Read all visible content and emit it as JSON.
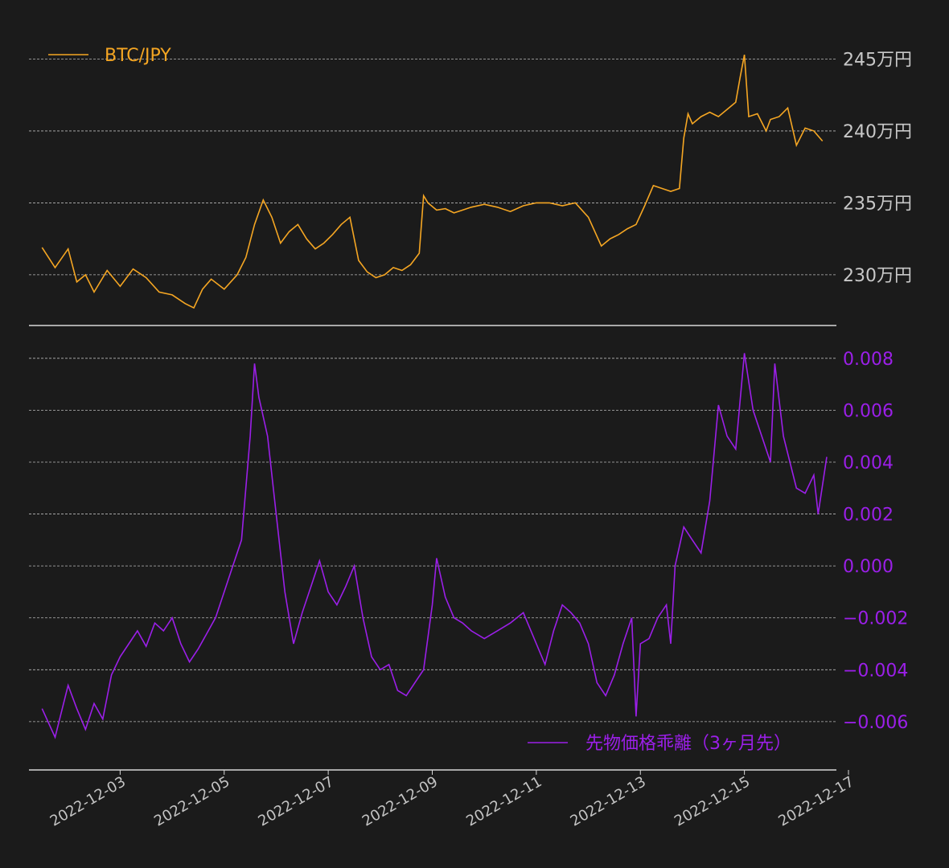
{
  "chart_data": [
    {
      "type": "line",
      "series": [
        {
          "name": "BTC/JPY",
          "color": "#f5a623",
          "points": [
            [
              "2022-12-01 12:00",
              2319000
            ],
            [
              "2022-12-01 18:00",
              2305000
            ],
            [
              "2022-12-02 00:00",
              2318000
            ],
            [
              "2022-12-02 04:00",
              2295000
            ],
            [
              "2022-12-02 08:00",
              2300000
            ],
            [
              "2022-12-02 12:00",
              2288000
            ],
            [
              "2022-12-02 18:00",
              2303000
            ],
            [
              "2022-12-03 00:00",
              2292000
            ],
            [
              "2022-12-03 06:00",
              2304000
            ],
            [
              "2022-12-03 12:00",
              2298000
            ],
            [
              "2022-12-03 18:00",
              2288000
            ],
            [
              "2022-12-04 00:00",
              2286000
            ],
            [
              "2022-12-04 06:00",
              2280000
            ],
            [
              "2022-12-04 10:00",
              2277000
            ],
            [
              "2022-12-04 14:00",
              2290000
            ],
            [
              "2022-12-04 18:00",
              2297000
            ],
            [
              "2022-12-05 00:00",
              2290000
            ],
            [
              "2022-12-05 06:00",
              2300000
            ],
            [
              "2022-12-05 10:00",
              2312000
            ],
            [
              "2022-12-05 14:00",
              2335000
            ],
            [
              "2022-12-05 18:00",
              2352000
            ],
            [
              "2022-12-05 22:00",
              2340000
            ],
            [
              "2022-12-06 02:00",
              2322000
            ],
            [
              "2022-12-06 06:00",
              2330000
            ],
            [
              "2022-12-06 10:00",
              2335000
            ],
            [
              "2022-12-06 14:00",
              2325000
            ],
            [
              "2022-12-06 18:00",
              2318000
            ],
            [
              "2022-12-06 22:00",
              2322000
            ],
            [
              "2022-12-07 02:00",
              2328000
            ],
            [
              "2022-12-07 06:00",
              2335000
            ],
            [
              "2022-12-07 10:00",
              2340000
            ],
            [
              "2022-12-07 14:00",
              2310000
            ],
            [
              "2022-12-07 18:00",
              2302000
            ],
            [
              "2022-12-07 22:00",
              2298000
            ],
            [
              "2022-12-08 02:00",
              2300000
            ],
            [
              "2022-12-08 06:00",
              2305000
            ],
            [
              "2022-12-08 10:00",
              2303000
            ],
            [
              "2022-12-08 14:00",
              2307000
            ],
            [
              "2022-12-08 18:00",
              2315000
            ],
            [
              "2022-12-08 20:00",
              2355000
            ],
            [
              "2022-12-08 22:00",
              2350000
            ],
            [
              "2022-12-09 02:00",
              2345000
            ],
            [
              "2022-12-09 06:00",
              2346000
            ],
            [
              "2022-12-09 10:00",
              2343000
            ],
            [
              "2022-12-09 14:00",
              2345000
            ],
            [
              "2022-12-09 18:00",
              2347000
            ],
            [
              "2022-12-10 00:00",
              2349000
            ],
            [
              "2022-12-10 06:00",
              2347000
            ],
            [
              "2022-12-10 12:00",
              2344000
            ],
            [
              "2022-12-10 18:00",
              2348000
            ],
            [
              "2022-12-11 00:00",
              2350000
            ],
            [
              "2022-12-11 06:00",
              2350000
            ],
            [
              "2022-12-11 12:00",
              2348000
            ],
            [
              "2022-12-11 18:00",
              2350000
            ],
            [
              "2022-12-12 00:00",
              2340000
            ],
            [
              "2022-12-12 06:00",
              2320000
            ],
            [
              "2022-12-12 10:00",
              2325000
            ],
            [
              "2022-12-12 14:00",
              2328000
            ],
            [
              "2022-12-12 18:00",
              2332000
            ],
            [
              "2022-12-12 22:00",
              2335000
            ],
            [
              "2022-12-13 02:00",
              2348000
            ],
            [
              "2022-12-13 06:00",
              2362000
            ],
            [
              "2022-12-13 10:00",
              2360000
            ],
            [
              "2022-12-13 14:00",
              2358000
            ],
            [
              "2022-12-13 18:00",
              2360000
            ],
            [
              "2022-12-13 20:00",
              2395000
            ],
            [
              "2022-12-13 22:00",
              2412000
            ],
            [
              "2022-12-14 00:00",
              2405000
            ],
            [
              "2022-12-14 04:00",
              2410000
            ],
            [
              "2022-12-14 08:00",
              2413000
            ],
            [
              "2022-12-14 12:00",
              2410000
            ],
            [
              "2022-12-14 16:00",
              2415000
            ],
            [
              "2022-12-14 20:00",
              2420000
            ],
            [
              "2022-12-14 22:00",
              2437000
            ],
            [
              "2022-12-15 00:00",
              2453000
            ],
            [
              "2022-12-15 02:00",
              2410000
            ],
            [
              "2022-12-15 06:00",
              2412000
            ],
            [
              "2022-12-15 10:00",
              2400000
            ],
            [
              "2022-12-15 12:00",
              2408000
            ],
            [
              "2022-12-15 16:00",
              2410000
            ],
            [
              "2022-12-15 20:00",
              2416000
            ],
            [
              "2022-12-16 00:00",
              2390000
            ],
            [
              "2022-12-16 04:00",
              2402000
            ],
            [
              "2022-12-16 08:00",
              2400000
            ],
            [
              "2022-12-16 12:00",
              2393000
            ]
          ]
        }
      ],
      "y_ticks": [
        {
          "value": 2300000,
          "label": "230万円"
        },
        {
          "value": 2350000,
          "label": "235万円"
        },
        {
          "value": 2400000,
          "label": "240万円"
        },
        {
          "value": 2450000,
          "label": "245万円"
        }
      ],
      "ylim": [
        2272000,
        2462000
      ],
      "grid": true,
      "legend": "top-left"
    },
    {
      "type": "line",
      "series": [
        {
          "name": "先物価格乖離（3ヶ月先）",
          "color": "#9b1fe8",
          "points": [
            [
              "2022-12-01 12:00",
              -0.0055
            ],
            [
              "2022-12-01 18:00",
              -0.0066
            ],
            [
              "2022-12-02 00:00",
              -0.0046
            ],
            [
              "2022-12-02 04:00",
              -0.0055
            ],
            [
              "2022-12-02 08:00",
              -0.0063
            ],
            [
              "2022-12-02 12:00",
              -0.0053
            ],
            [
              "2022-12-02 16:00",
              -0.0059
            ],
            [
              "2022-12-02 20:00",
              -0.0042
            ],
            [
              "2022-12-03 00:00",
              -0.0035
            ],
            [
              "2022-12-03 04:00",
              -0.003
            ],
            [
              "2022-12-03 08:00",
              -0.0025
            ],
            [
              "2022-12-03 12:00",
              -0.0031
            ],
            [
              "2022-12-03 16:00",
              -0.0022
            ],
            [
              "2022-12-03 20:00",
              -0.0025
            ],
            [
              "2022-12-04 00:00",
              -0.002
            ],
            [
              "2022-12-04 04:00",
              -0.003
            ],
            [
              "2022-12-04 08:00",
              -0.0037
            ],
            [
              "2022-12-04 12:00",
              -0.0032
            ],
            [
              "2022-12-04 16:00",
              -0.0026
            ],
            [
              "2022-12-04 20:00",
              -0.002
            ],
            [
              "2022-12-05 00:00",
              -0.001
            ],
            [
              "2022-12-05 04:00",
              0.0
            ],
            [
              "2022-12-05 08:00",
              0.001
            ],
            [
              "2022-12-05 12:00",
              0.005
            ],
            [
              "2022-12-05 14:00",
              0.0078
            ],
            [
              "2022-12-05 16:00",
              0.0065
            ],
            [
              "2022-12-05 20:00",
              0.005
            ],
            [
              "2022-12-06 00:00",
              0.002
            ],
            [
              "2022-12-06 04:00",
              -0.001
            ],
            [
              "2022-12-06 08:00",
              -0.003
            ],
            [
              "2022-12-06 12:00",
              -0.0018
            ],
            [
              "2022-12-06 16:00",
              -0.0008
            ],
            [
              "2022-12-06 20:00",
              0.0002
            ],
            [
              "2022-12-07 00:00",
              -0.001
            ],
            [
              "2022-12-07 04:00",
              -0.0015
            ],
            [
              "2022-12-07 08:00",
              -0.0008
            ],
            [
              "2022-12-07 12:00",
              0.0
            ],
            [
              "2022-12-07 16:00",
              -0.002
            ],
            [
              "2022-12-07 20:00",
              -0.0035
            ],
            [
              "2022-12-08 00:00",
              -0.004
            ],
            [
              "2022-12-08 04:00",
              -0.0038
            ],
            [
              "2022-12-08 08:00",
              -0.0048
            ],
            [
              "2022-12-08 12:00",
              -0.005
            ],
            [
              "2022-12-08 16:00",
              -0.0045
            ],
            [
              "2022-12-08 20:00",
              -0.004
            ],
            [
              "2022-12-09 00:00",
              -0.0015
            ],
            [
              "2022-12-09 02:00",
              0.0003
            ],
            [
              "2022-12-09 06:00",
              -0.0012
            ],
            [
              "2022-12-09 10:00",
              -0.002
            ],
            [
              "2022-12-09 14:00",
              -0.0022
            ],
            [
              "2022-12-09 18:00",
              -0.0025
            ],
            [
              "2022-12-10 00:00",
              -0.0028
            ],
            [
              "2022-12-10 06:00",
              -0.0025
            ],
            [
              "2022-12-10 12:00",
              -0.0022
            ],
            [
              "2022-12-10 18:00",
              -0.0018
            ],
            [
              "2022-12-11 00:00",
              -0.003
            ],
            [
              "2022-12-11 04:00",
              -0.0038
            ],
            [
              "2022-12-11 08:00",
              -0.0025
            ],
            [
              "2022-12-11 12:00",
              -0.0015
            ],
            [
              "2022-12-11 16:00",
              -0.0018
            ],
            [
              "2022-12-11 20:00",
              -0.0022
            ],
            [
              "2022-12-12 00:00",
              -0.003
            ],
            [
              "2022-12-12 04:00",
              -0.0045
            ],
            [
              "2022-12-12 08:00",
              -0.005
            ],
            [
              "2022-12-12 12:00",
              -0.0042
            ],
            [
              "2022-12-12 16:00",
              -0.003
            ],
            [
              "2022-12-12 20:00",
              -0.002
            ],
            [
              "2022-12-12 22:00",
              -0.0058
            ],
            [
              "2022-12-13 00:00",
              -0.003
            ],
            [
              "2022-12-13 04:00",
              -0.0028
            ],
            [
              "2022-12-13 08:00",
              -0.002
            ],
            [
              "2022-12-13 12:00",
              -0.0015
            ],
            [
              "2022-12-13 14:00",
              -0.003
            ],
            [
              "2022-12-13 16:00",
              0.0
            ],
            [
              "2022-12-13 20:00",
              0.0015
            ],
            [
              "2022-12-14 00:00",
              0.001
            ],
            [
              "2022-12-14 04:00",
              0.0005
            ],
            [
              "2022-12-14 08:00",
              0.0025
            ],
            [
              "2022-12-14 12:00",
              0.0062
            ],
            [
              "2022-12-14 16:00",
              0.005
            ],
            [
              "2022-12-14 20:00",
              0.0045
            ],
            [
              "2022-12-15 00:00",
              0.0082
            ],
            [
              "2022-12-15 04:00",
              0.006
            ],
            [
              "2022-12-15 08:00",
              0.005
            ],
            [
              "2022-12-15 12:00",
              0.004
            ],
            [
              "2022-12-15 14:00",
              0.0078
            ],
            [
              "2022-12-15 18:00",
              0.005
            ],
            [
              "2022-12-16 00:00",
              0.003
            ],
            [
              "2022-12-16 04:00",
              0.0028
            ],
            [
              "2022-12-16 08:00",
              0.0035
            ],
            [
              "2022-12-16 10:00",
              0.002
            ],
            [
              "2022-12-16 14:00",
              0.0042
            ]
          ]
        }
      ],
      "y_ticks": [
        {
          "value": -0.006,
          "label": "−0.006"
        },
        {
          "value": -0.004,
          "label": "−0.004"
        },
        {
          "value": -0.002,
          "label": "−0.002"
        },
        {
          "value": 0.0,
          "label": "0.000"
        },
        {
          "value": 0.002,
          "label": "0.002"
        },
        {
          "value": 0.004,
          "label": "0.004"
        },
        {
          "value": 0.006,
          "label": "0.006"
        },
        {
          "value": 0.008,
          "label": "0.008"
        }
      ],
      "ylim": [
        -0.0078,
        0.0088
      ],
      "grid": true,
      "legend": "bottom-right"
    }
  ],
  "x_axis": {
    "ticks": [
      "2022-12-03",
      "2022-12-05",
      "2022-12-07",
      "2022-12-09",
      "2022-12-11",
      "2022-12-13",
      "2022-12-15",
      "2022-12-17"
    ],
    "xlim": [
      "2022-12-01",
      "2022-12-17"
    ]
  }
}
